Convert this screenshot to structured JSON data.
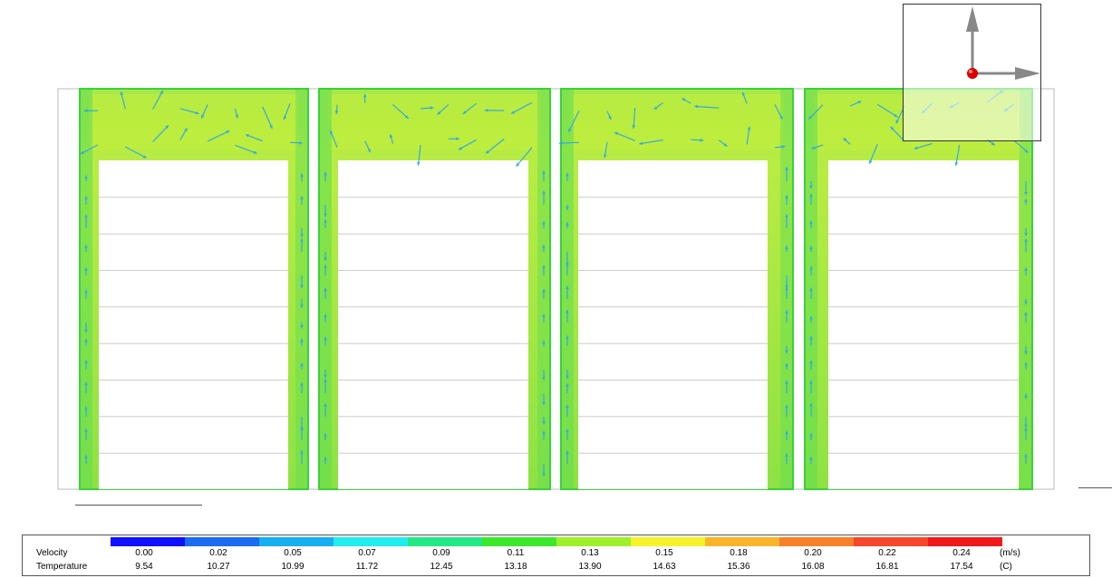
{
  "viewport": {
    "field_colors": {
      "warm": "#c4ee3a",
      "mid": "#a2e63e",
      "cool": "#5fdc52",
      "outline": "#39d23a"
    },
    "vector_color": "#33aadd",
    "panel_count": 4,
    "rack_rows": 8
  },
  "triad": {
    "axes": [
      "y-axis",
      "x-axis",
      "z-axis"
    ],
    "axis_color": "#888888",
    "origin_color": "#dd0000"
  },
  "legend": {
    "colors": [
      "#1010ff",
      "#1a6cf0",
      "#17aef2",
      "#20eeee",
      "#22e985",
      "#3ce82c",
      "#9ef02a",
      "#f6f32a",
      "#f8b52a",
      "#f8802a",
      "#f8462a",
      "#f01818"
    ],
    "velocity": {
      "label": "Velocity",
      "unit": "(m/s)",
      "values": [
        "0.00",
        "0.02",
        "0.05",
        "0.07",
        "0.09",
        "0.11",
        "0.13",
        "0.15",
        "0.18",
        "0.20",
        "0.22",
        "0.24"
      ]
    },
    "temperature": {
      "label": "Temperature",
      "unit": "(C)",
      "values": [
        "9.54",
        "10.27",
        "10.99",
        "11.72",
        "12.45",
        "13.18",
        "13.90",
        "14.63",
        "15.36",
        "16.08",
        "16.81",
        "17.54"
      ]
    }
  }
}
